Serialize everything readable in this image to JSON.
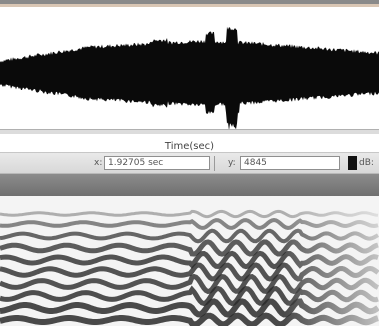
{
  "app": {
    "panels": [
      "waveform",
      "spectrogram"
    ]
  },
  "waveform": {
    "color": "#0a0a0a",
    "background": "#ffffff"
  },
  "axis": {
    "label": "Time(sec)"
  },
  "cursor": {
    "x_label": "x:",
    "x_value": "1.92705 sec",
    "y_label": "y:",
    "y_value": "4845",
    "db_label": "dB:"
  },
  "spectrogram": {
    "colormap": "grayscale",
    "band_color": "#2a2a2a",
    "background": "#f4f4f4"
  }
}
